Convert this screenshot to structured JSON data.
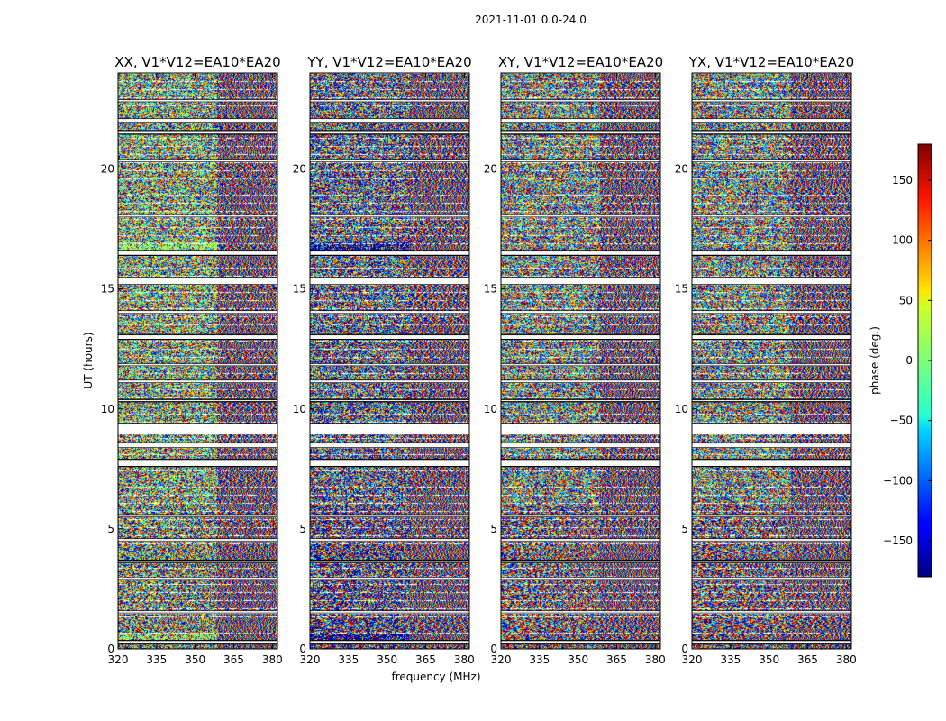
{
  "chart_data": {
    "type": "heatmap",
    "suptitle": "2021-11-01 0.0-24.0",
    "xlabel": "frequency (MHz)",
    "ylabel": "UT (hours)",
    "xlim": [
      320,
      382
    ],
    "ylim": [
      0,
      24
    ],
    "xticks": [
      320,
      335,
      350,
      365,
      380
    ],
    "yticks": [
      0,
      5,
      10,
      15,
      20
    ],
    "panels": [
      {
        "title": "XX, V1*V12=EA10*EA20",
        "correlation": "XX",
        "dominant_phase": 10
      },
      {
        "title": "YY, V1*V12=EA10*EA20",
        "correlation": "YY",
        "dominant_phase": -170
      },
      {
        "title": "XY, V1*V12=EA10*EA20",
        "correlation": "XY",
        "dominant_phase": null
      },
      {
        "title": "YX, V1*V12=EA10*EA20",
        "correlation": "YX",
        "dominant_phase": null
      }
    ],
    "colorbar": {
      "label": "phase (deg.)",
      "range": [
        -180,
        180
      ],
      "ticks": [
        -150,
        -100,
        -50,
        0,
        50,
        100,
        150
      ],
      "colormap": "jet"
    },
    "data_gaps_ut": [
      [
        0.2,
        0.35
      ],
      [
        1.5,
        1.6
      ],
      [
        2.9,
        3.0
      ],
      [
        3.6,
        3.7
      ],
      [
        4.5,
        4.6
      ],
      [
        5.5,
        5.6
      ],
      [
        7.6,
        7.9
      ],
      [
        8.4,
        8.6
      ],
      [
        8.95,
        9.4
      ],
      [
        10.3,
        10.4
      ],
      [
        11.1,
        11.2
      ],
      [
        11.8,
        11.9
      ],
      [
        12.9,
        13.1
      ],
      [
        14.0,
        14.1
      ],
      [
        15.2,
        15.5
      ],
      [
        16.4,
        16.6
      ],
      [
        18.0,
        18.1
      ],
      [
        20.3,
        20.4
      ],
      [
        21.45,
        21.6
      ],
      [
        21.95,
        22.1
      ],
      [
        22.8,
        22.9
      ]
    ],
    "grid": false
  }
}
